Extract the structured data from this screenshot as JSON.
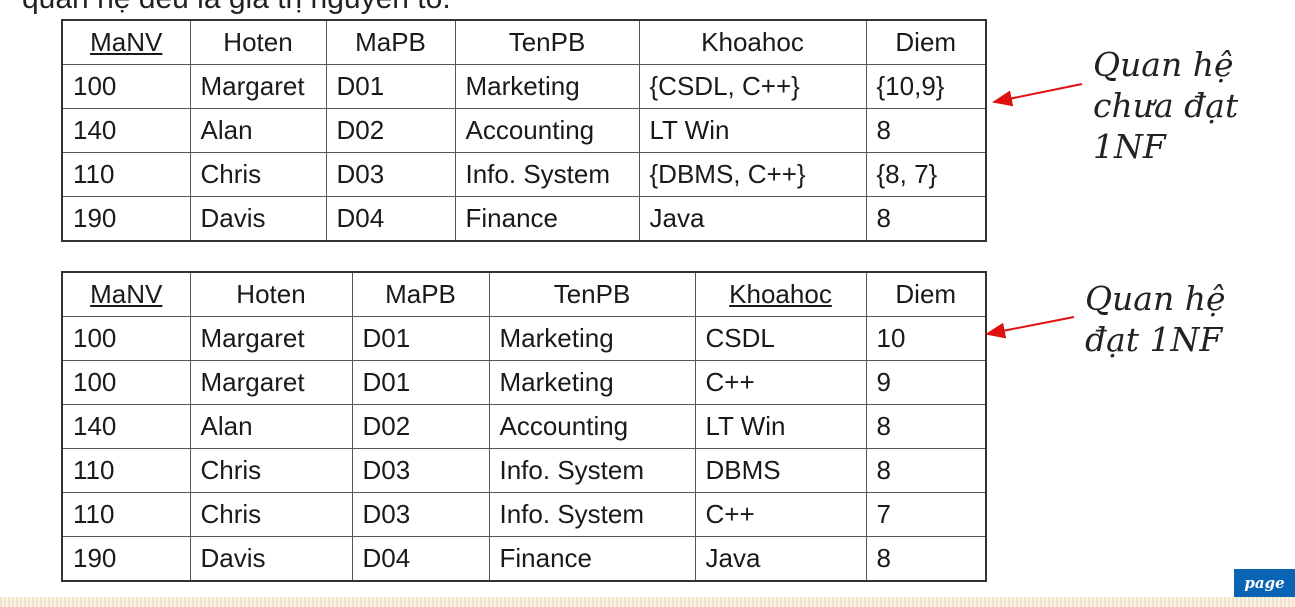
{
  "top_text": "quan hệ đều là giá trị nguyên tố.",
  "table1": {
    "headers": [
      {
        "label": "MaNV",
        "key": true
      },
      {
        "label": "Hoten",
        "key": false
      },
      {
        "label": "MaPB",
        "key": false
      },
      {
        "label": "TenPB",
        "key": false
      },
      {
        "label": "Khoahoc",
        "key": false
      },
      {
        "label": "Diem",
        "key": false
      }
    ],
    "rows": [
      [
        "100",
        "Margaret",
        "D01",
        "Marketing",
        "{CSDL, C++}",
        "{10,9}"
      ],
      [
        "140",
        "Alan",
        "D02",
        "Accounting",
        "LT Win",
        "8"
      ],
      [
        "110",
        "Chris",
        "D03",
        "Info. System",
        "{DBMS, C++}",
        "{8, 7}"
      ],
      [
        "190",
        "Davis",
        "D04",
        "Finance",
        "Java",
        "8"
      ]
    ]
  },
  "table2": {
    "headers": [
      {
        "label": "MaNV",
        "key": true
      },
      {
        "label": "Hoten",
        "key": false
      },
      {
        "label": "MaPB",
        "key": false
      },
      {
        "label": "TenPB",
        "key": false
      },
      {
        "label": "Khoahoc",
        "key": true
      },
      {
        "label": "Diem",
        "key": false
      }
    ],
    "rows": [
      [
        "100",
        "Margaret",
        "D01",
        "Marketing",
        "CSDL",
        "10"
      ],
      [
        "100",
        "Margaret",
        "D01",
        "Marketing",
        "C++",
        "9"
      ],
      [
        "140",
        "Alan",
        "D02",
        "Accounting",
        "LT Win",
        "8"
      ],
      [
        "110",
        "Chris",
        "D03",
        "Info. System",
        "DBMS",
        "8"
      ],
      [
        "110",
        "Chris",
        "D03",
        "Info. System",
        "C++",
        "7"
      ],
      [
        "190",
        "Davis",
        "D04",
        "Finance",
        "Java",
        "8"
      ]
    ]
  },
  "note1": [
    "Quan hệ",
    "chưa đạt",
    "1NF"
  ],
  "note2": [
    "Quan hệ",
    "đạt 1NF"
  ],
  "arrow_color": "#e01010",
  "page_badge": "page",
  "badge_color": "#0a64b4"
}
